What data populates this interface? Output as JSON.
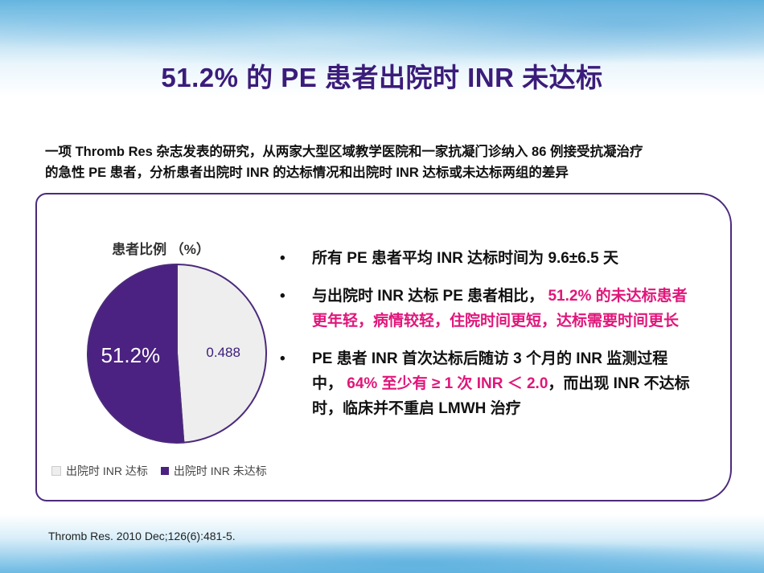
{
  "title": "51.2% 的 PE 患者出院时 INR 未达标",
  "intro": {
    "line1": "一项 Thromb Res 杂志发表的研究，从两家大型区域教学医院和一家抗凝门诊纳入 86 例接受抗凝治疗",
    "line2": "的急性 PE 患者，分析患者出院时 INR 的达标情况和出院时 INR 达标或未达标两组的差异"
  },
  "colors": {
    "title": "#3b1c7a",
    "highlight": "#e0167a",
    "border": "#4b2a7b"
  },
  "chart_data": {
    "type": "pie",
    "title": "患者比例 （%）",
    "slices": [
      {
        "name": "出院时 INR 达标",
        "value": 0.488,
        "label": "0.488",
        "color": "#eeeeee"
      },
      {
        "name": "出院时 INR 未达标",
        "value": 0.512,
        "label": "51.2%",
        "color": "#4b2181"
      }
    ],
    "legend_position": "bottom"
  },
  "bullets": [
    {
      "dot": "•",
      "parts": [
        {
          "text": "所有 PE 患者平均 INR 达标时间为 9.6±6.5 天",
          "highlight": false
        }
      ]
    },
    {
      "dot": "•",
      "parts": [
        {
          "text": "与出院时 INR 达标 PE 患者相比，",
          "highlight": false
        },
        {
          "text": " 51.2% 的未达标患者更年轻，病情较轻，住院时间更短，达标需要时间更长",
          "highlight": true
        }
      ]
    },
    {
      "dot": "•",
      "parts": [
        {
          "text": "PE 患者 INR 首次达标后随访 3 个月的 INR 监测过程中，",
          "highlight": false
        },
        {
          "text": " 64% 至少有 ≥ 1 次 INR ＜ 2.0",
          "highlight": true
        },
        {
          "text": "，而出现 INR 不达标时，临床并不重启 LMWH 治疗",
          "highlight": false
        }
      ]
    }
  ],
  "source": "Thromb Res. 2010 Dec;126(6):481-5."
}
